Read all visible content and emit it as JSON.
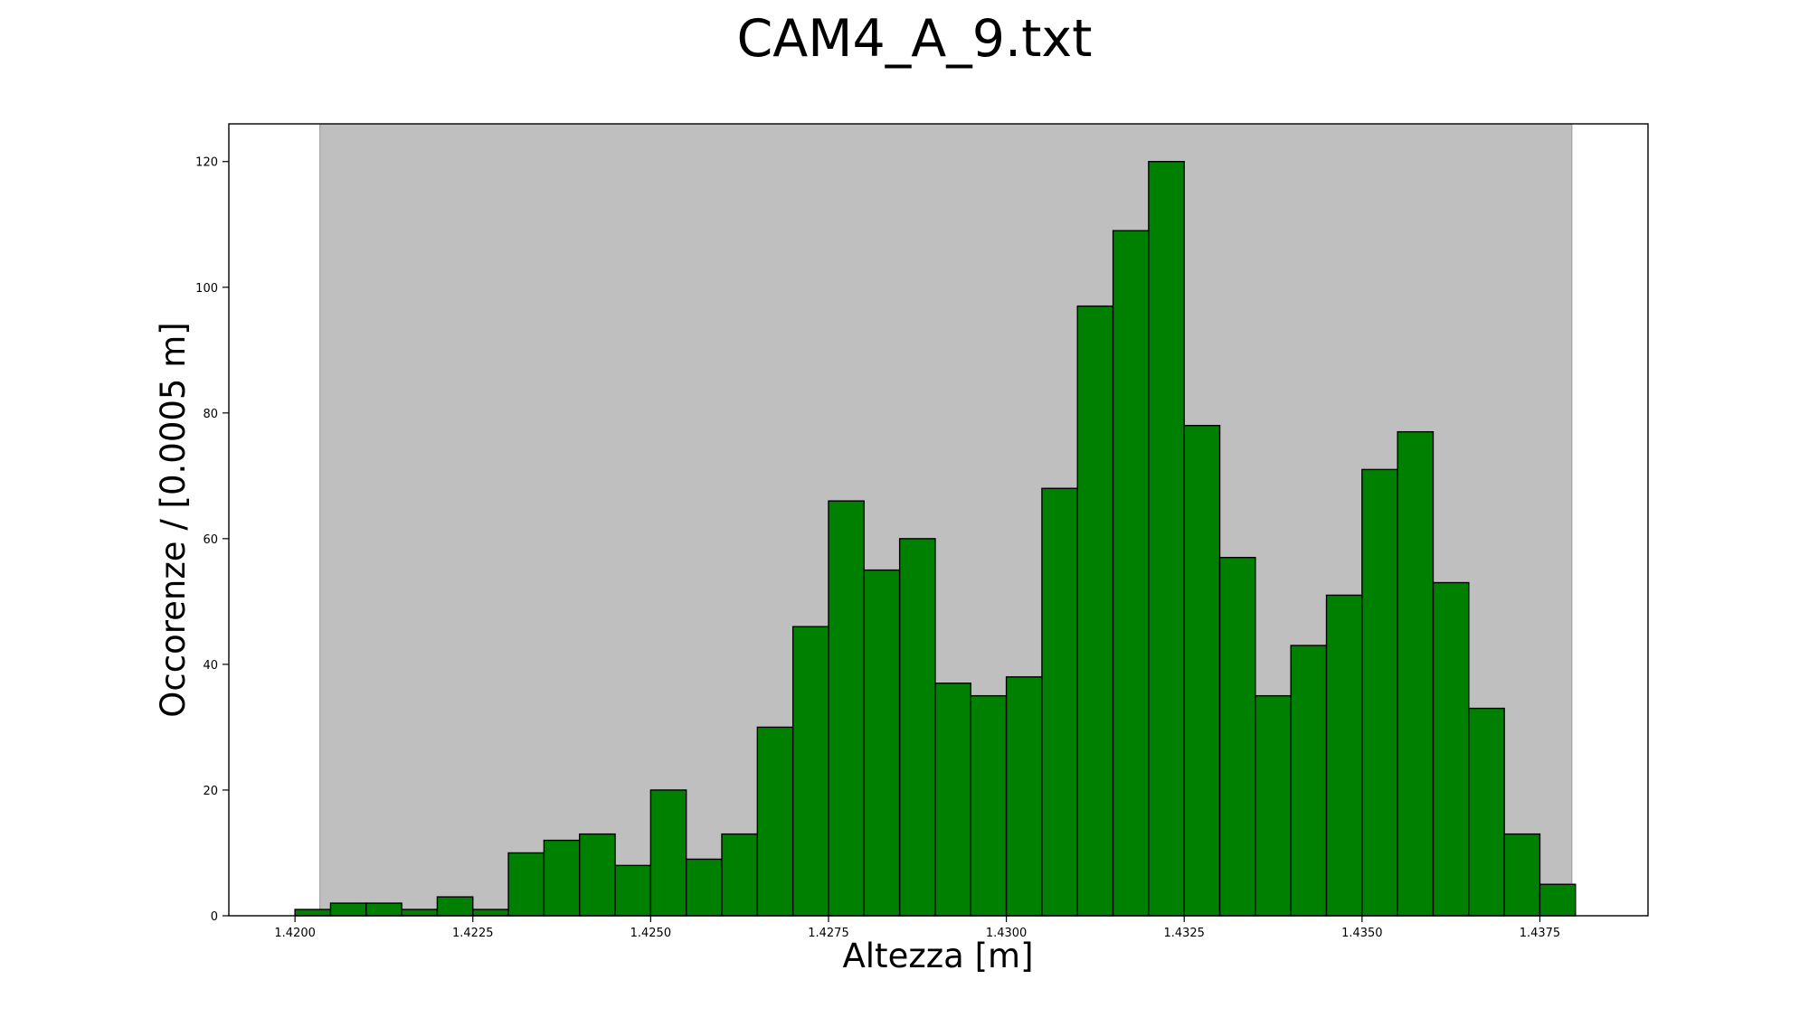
{
  "chart_data": {
    "type": "bar",
    "title": "CAM4_A_9.txt",
    "xlabel": "Altezza [m]",
    "ylabel": "Occorenze / [0.0005 m]",
    "xlim": [
      1.41907,
      1.43902
    ],
    "ylim": [
      0,
      126
    ],
    "bin_width": 0.0005,
    "bin_start": 1.42,
    "values": [
      1,
      2,
      2,
      1,
      3,
      1,
      10,
      12,
      13,
      8,
      20,
      9,
      13,
      30,
      46,
      66,
      55,
      60,
      37,
      35,
      38,
      68,
      97,
      109,
      120,
      78,
      57,
      35,
      43,
      51,
      71,
      77,
      53,
      33,
      13,
      5
    ],
    "x_ticks": [
      "1.4200",
      "1.4225",
      "1.4250",
      "1.4275",
      "1.4300",
      "1.4325",
      "1.4350",
      "1.4375"
    ],
    "y_ticks": [
      "0",
      "20",
      "40",
      "60",
      "80",
      "100",
      "120"
    ],
    "shaded_range": [
      1.42035,
      1.43795
    ],
    "grid": false,
    "colors": {
      "bar_fill": "#008000",
      "bar_edge": "#000000",
      "shaded_region": "#bfbfbf"
    }
  }
}
